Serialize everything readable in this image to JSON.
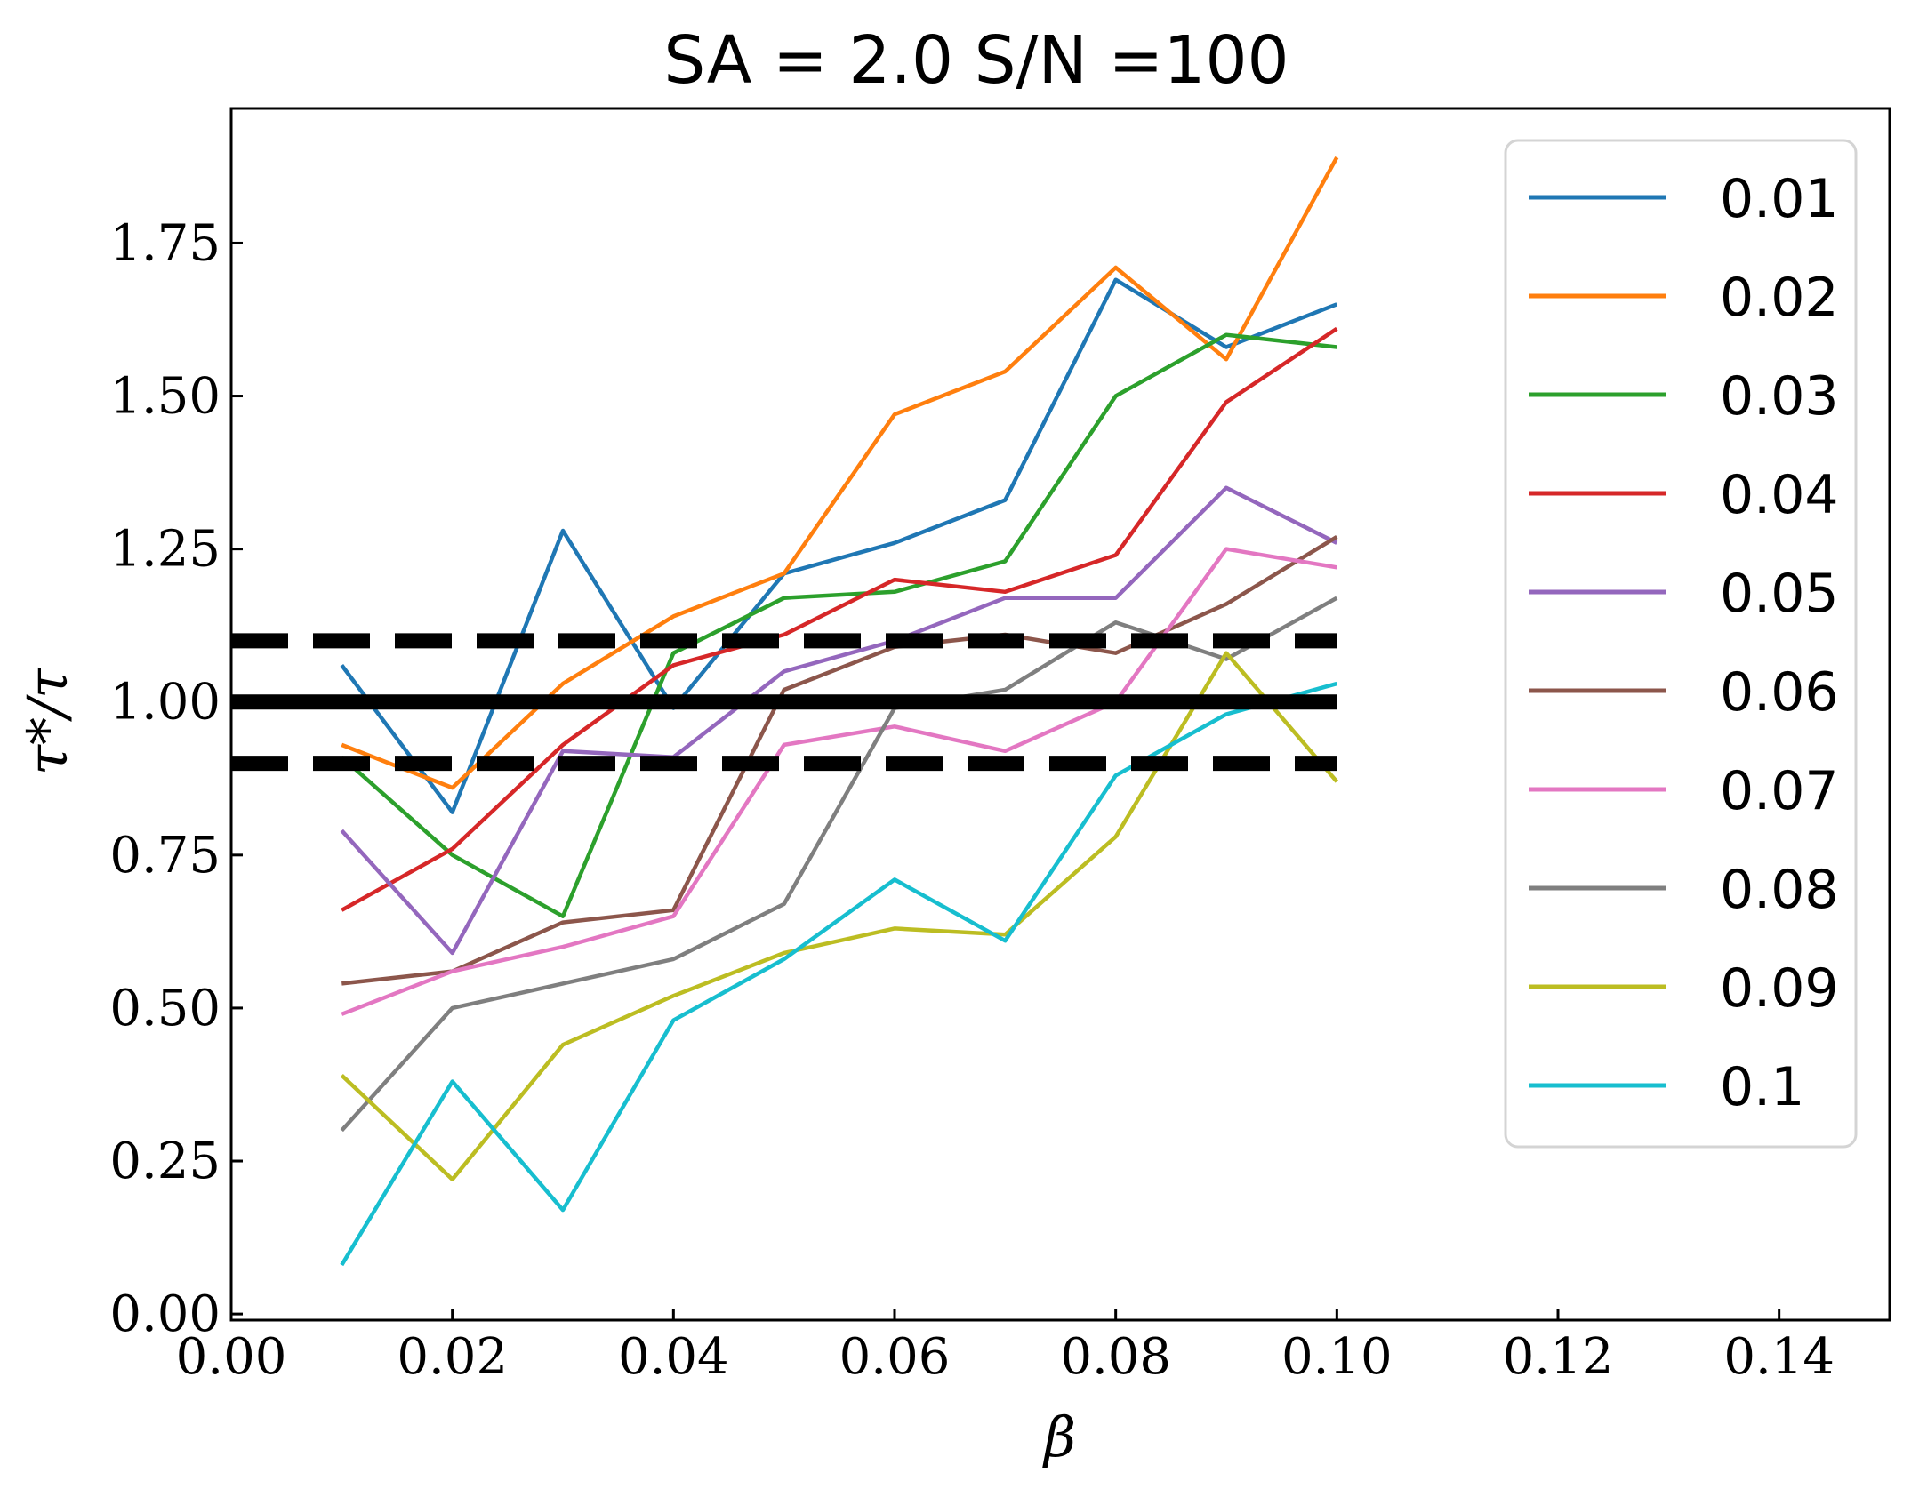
{
  "chart_data": {
    "type": "line",
    "title": "SA = 2.0 S/N =100",
    "xlabel": "β",
    "ylabel": "τ*/τ",
    "xlim": [
      0.0,
      0.15
    ],
    "ylim": [
      -0.01,
      1.97
    ],
    "xticks": [
      "0.00",
      "0.02",
      "0.04",
      "0.06",
      "0.08",
      "0.10",
      "0.12",
      "0.14"
    ],
    "yticks": [
      "0.00",
      "0.25",
      "0.50",
      "0.75",
      "1.00",
      "1.25",
      "1.50",
      "1.75"
    ],
    "grid": false,
    "legend_position": "top-right",
    "x": [
      0.01,
      0.02,
      0.03,
      0.04,
      0.05,
      0.06,
      0.07,
      0.08,
      0.09,
      0.1
    ],
    "reference_lines": [
      {
        "y": 1.0,
        "style": "solid",
        "x_range": [
          0.0,
          0.1
        ],
        "color": "#000000"
      },
      {
        "y": 1.1,
        "style": "dashed",
        "x_range": [
          0.0,
          0.1
        ],
        "color": "#000000"
      },
      {
        "y": 0.9,
        "style": "dashed",
        "x_range": [
          0.0,
          0.1
        ],
        "color": "#000000"
      }
    ],
    "series": [
      {
        "name": "0.01",
        "color": "#1f77b4",
        "values": [
          1.06,
          0.82,
          1.28,
          0.99,
          1.21,
          1.26,
          1.33,
          1.69,
          1.58,
          1.65
        ]
      },
      {
        "name": "0.02",
        "color": "#ff7f0e",
        "values": [
          0.93,
          0.86,
          1.03,
          1.14,
          1.21,
          1.47,
          1.54,
          1.71,
          1.56,
          1.89
        ]
      },
      {
        "name": "0.03",
        "color": "#2ca02c",
        "values": [
          0.91,
          0.75,
          0.65,
          1.08,
          1.17,
          1.18,
          1.23,
          1.5,
          1.6,
          1.58
        ]
      },
      {
        "name": "0.04",
        "color": "#d62728",
        "values": [
          0.66,
          0.76,
          0.93,
          1.06,
          1.11,
          1.2,
          1.18,
          1.24,
          1.49,
          1.61
        ]
      },
      {
        "name": "0.05",
        "color": "#9467bd",
        "values": [
          0.79,
          0.59,
          0.92,
          0.91,
          1.05,
          1.1,
          1.17,
          1.17,
          1.35,
          1.26
        ]
      },
      {
        "name": "0.06",
        "color": "#8c564b",
        "values": [
          0.54,
          0.56,
          0.64,
          0.66,
          1.02,
          1.09,
          1.11,
          1.08,
          1.16,
          1.27
        ]
      },
      {
        "name": "0.07",
        "color": "#e377c2",
        "values": [
          0.49,
          0.56,
          0.6,
          0.65,
          0.93,
          0.96,
          0.92,
          1.0,
          1.25,
          1.22
        ]
      },
      {
        "name": "0.08",
        "color": "#7f7f7f",
        "values": [
          0.3,
          0.5,
          0.54,
          0.58,
          0.67,
          0.99,
          1.02,
          1.13,
          1.07,
          1.17
        ]
      },
      {
        "name": "0.09",
        "color": "#bcbd22",
        "values": [
          0.39,
          0.22,
          0.44,
          0.52,
          0.59,
          0.63,
          0.62,
          0.78,
          1.08,
          0.87
        ]
      },
      {
        "name": "0.1",
        "color": "#17becf",
        "values": [
          0.08,
          0.38,
          0.17,
          0.48,
          0.58,
          0.71,
          0.61,
          0.88,
          0.98,
          1.03
        ]
      }
    ]
  }
}
